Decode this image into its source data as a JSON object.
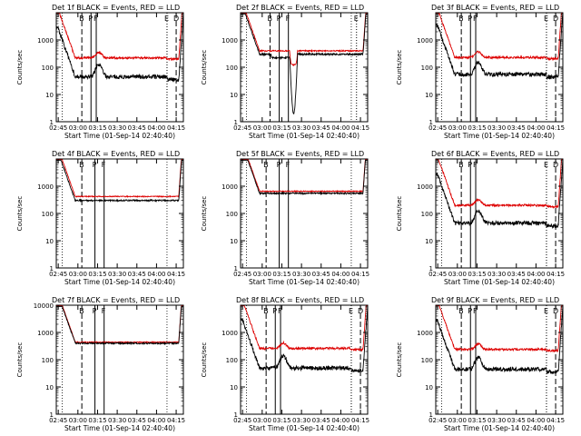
{
  "colors": {
    "events": "#000000",
    "lld": "#dd0000",
    "axis": "#000000"
  },
  "axis_text": {
    "xlabel": "Start Time (01-Sep-14 02:40:40)",
    "ylabel": "Counts/sec",
    "xticks": [
      "02:45",
      "03:00",
      "03:15",
      "03:30",
      "03:45",
      "04:00",
      "04:15"
    ],
    "yticks": [
      "1",
      "10",
      "100",
      "1000",
      "10000"
    ]
  },
  "chart_data": [
    {
      "type": "line",
      "title": "Det 1f BLACK = Events, RED = LLD",
      "ylim": [
        1,
        10000
      ],
      "ytick_values": [
        1,
        10,
        100,
        1000
      ],
      "ytick_labels": [
        "1",
        "10",
        "100",
        "1000"
      ],
      "profile": "flare",
      "base_black": 45,
      "base_red": 220,
      "series": [
        {
          "name": "Events",
          "x_min": [
            -1,
            1,
            3,
            5,
            7,
            9,
            11,
            13,
            15,
            17,
            19,
            21,
            23,
            25,
            27,
            29,
            31,
            33,
            35,
            37,
            39,
            41,
            43,
            45,
            47,
            49,
            51,
            53,
            55,
            57,
            59,
            61,
            63,
            65,
            67,
            69,
            71,
            73,
            75,
            77,
            79,
            81,
            83,
            85,
            87,
            89,
            91,
            93,
            95
          ],
          "values": []
        },
        {
          "name": "LLD",
          "values": []
        }
      ],
      "markers": [
        {
          "label": "B",
          "x_min": 18
        },
        {
          "label": "D",
          "x_min": 90
        },
        {
          "label": "P",
          "x_min": 25
        },
        {
          "label": "F",
          "x_min": 29
        },
        {
          "label": "E",
          "x_min": 83
        }
      ]
    },
    {
      "type": "line",
      "title": "Det 2f BLACK = Events, RED = LLD",
      "ylim": [
        1,
        10000
      ],
      "ytick_values": [
        1,
        10,
        100,
        1000
      ],
      "ytick_labels": [
        "1",
        "10",
        "100",
        "1000"
      ],
      "profile": "dip",
      "base_black": 300,
      "base_red": 400,
      "series": [
        {
          "name": "Events",
          "values": []
        },
        {
          "name": "LLD",
          "values": []
        }
      ],
      "markers": [
        {
          "label": "B",
          "x_min": 21
        },
        {
          "label": "P",
          "x_min": 28
        },
        {
          "label": "F",
          "x_min": 35
        },
        {
          "label": "E",
          "x_min": 87
        }
      ]
    },
    {
      "type": "line",
      "title": "Det 3f BLACK = Events, RED = LLD",
      "ylim": [
        1,
        10000
      ],
      "ytick_values": [
        1,
        10,
        100,
        1000
      ],
      "ytick_labels": [
        "1",
        "10",
        "100",
        "1000"
      ],
      "profile": "flare",
      "base_black": 55,
      "base_red": 230,
      "series": [
        {
          "name": "Events",
          "values": []
        },
        {
          "name": "LLD",
          "values": []
        }
      ],
      "markers": [
        {
          "label": "B",
          "x_min": 18
        },
        {
          "label": "D",
          "x_min": 90
        },
        {
          "label": "P",
          "x_min": 25
        },
        {
          "label": "F",
          "x_min": 29
        },
        {
          "label": "E",
          "x_min": 83
        }
      ]
    },
    {
      "type": "line",
      "title": "Det 4f BLACK = Events, RED = LLD",
      "ylim": [
        1,
        10000
      ],
      "ytick_values": [
        1,
        10,
        100,
        1000
      ],
      "ytick_labels": [
        "1",
        "10",
        "100",
        "1000"
      ],
      "profile": "high",
      "base_black": 300,
      "base_red": 420,
      "series": [
        {
          "name": "Events",
          "values": []
        },
        {
          "name": "LLD",
          "values": []
        }
      ],
      "markers": [
        {
          "label": "B",
          "x_min": 18
        },
        {
          "label": "P",
          "x_min": 28
        },
        {
          "label": "F",
          "x_min": 35
        }
      ]
    },
    {
      "type": "line",
      "title": "Det 5f BLACK = Events, RED = LLD",
      "ylim": [
        1,
        10000
      ],
      "ytick_values": [
        1,
        10,
        100,
        1000
      ],
      "ytick_labels": [
        "1",
        "10",
        "100",
        "1000"
      ],
      "profile": "high",
      "base_black": 550,
      "base_red": 650,
      "series": [
        {
          "name": "Events",
          "values": []
        },
        {
          "name": "LLD",
          "values": []
        }
      ],
      "markers": [
        {
          "label": "B",
          "x_min": 18
        },
        {
          "label": "P",
          "x_min": 28
        },
        {
          "label": "F",
          "x_min": 35
        }
      ]
    },
    {
      "type": "line",
      "title": "Det 6f BLACK = Events, RED = LLD",
      "ylim": [
        1,
        10000
      ],
      "ytick_values": [
        1,
        10,
        100,
        1000
      ],
      "ytick_labels": [
        "1",
        "10",
        "100",
        "1000"
      ],
      "profile": "flare",
      "base_black": 45,
      "base_red": 200,
      "series": [
        {
          "name": "Events",
          "values": []
        },
        {
          "name": "LLD",
          "values": []
        }
      ],
      "markers": [
        {
          "label": "B",
          "x_min": 18
        },
        {
          "label": "D",
          "x_min": 90
        },
        {
          "label": "P",
          "x_min": 25
        },
        {
          "label": "F",
          "x_min": 29
        },
        {
          "label": "E",
          "x_min": 83
        }
      ]
    },
    {
      "type": "line",
      "title": "Det 7f BLACK = Events, RED = LLD",
      "ylim": [
        1,
        10000
      ],
      "ytick_values": [
        1,
        10,
        100,
        1000,
        10000
      ],
      "ytick_labels": [
        "1",
        "10",
        "100",
        "1000",
        "10000"
      ],
      "profile": "high",
      "base_black": 400,
      "base_red": 440,
      "series": [
        {
          "name": "Events",
          "values": []
        },
        {
          "name": "LLD",
          "values": []
        }
      ],
      "markers": [
        {
          "label": "B",
          "x_min": 18
        },
        {
          "label": "P",
          "x_min": 28
        },
        {
          "label": "F",
          "x_min": 35
        }
      ]
    },
    {
      "type": "line",
      "title": "Det 8f BLACK = Events, RED = LLD",
      "ylim": [
        1,
        10000
      ],
      "ytick_values": [
        1,
        10,
        100,
        1000
      ],
      "ytick_labels": [
        "1",
        "10",
        "100",
        "1000"
      ],
      "profile": "flare",
      "base_black": 50,
      "base_red": 260,
      "series": [
        {
          "name": "Events",
          "values": []
        },
        {
          "name": "LLD",
          "values": []
        }
      ],
      "markers": [
        {
          "label": "B",
          "x_min": 18
        },
        {
          "label": "D",
          "x_min": 90
        },
        {
          "label": "P",
          "x_min": 25
        },
        {
          "label": "F",
          "x_min": 29
        },
        {
          "label": "E",
          "x_min": 83
        }
      ]
    },
    {
      "type": "line",
      "title": "Det 9f BLACK = Events, RED = LLD",
      "ylim": [
        1,
        10000
      ],
      "ytick_values": [
        1,
        10,
        100,
        1000
      ],
      "ytick_labels": [
        "1",
        "10",
        "100",
        "1000"
      ],
      "profile": "flare",
      "base_black": 45,
      "base_red": 240,
      "series": [
        {
          "name": "Events",
          "values": []
        },
        {
          "name": "LLD",
          "values": []
        }
      ],
      "markers": [
        {
          "label": "B",
          "x_min": 18
        },
        {
          "label": "D",
          "x_min": 90
        },
        {
          "label": "P",
          "x_min": 25
        },
        {
          "label": "F",
          "x_min": 29
        },
        {
          "label": "E",
          "x_min": 83
        }
      ]
    }
  ]
}
